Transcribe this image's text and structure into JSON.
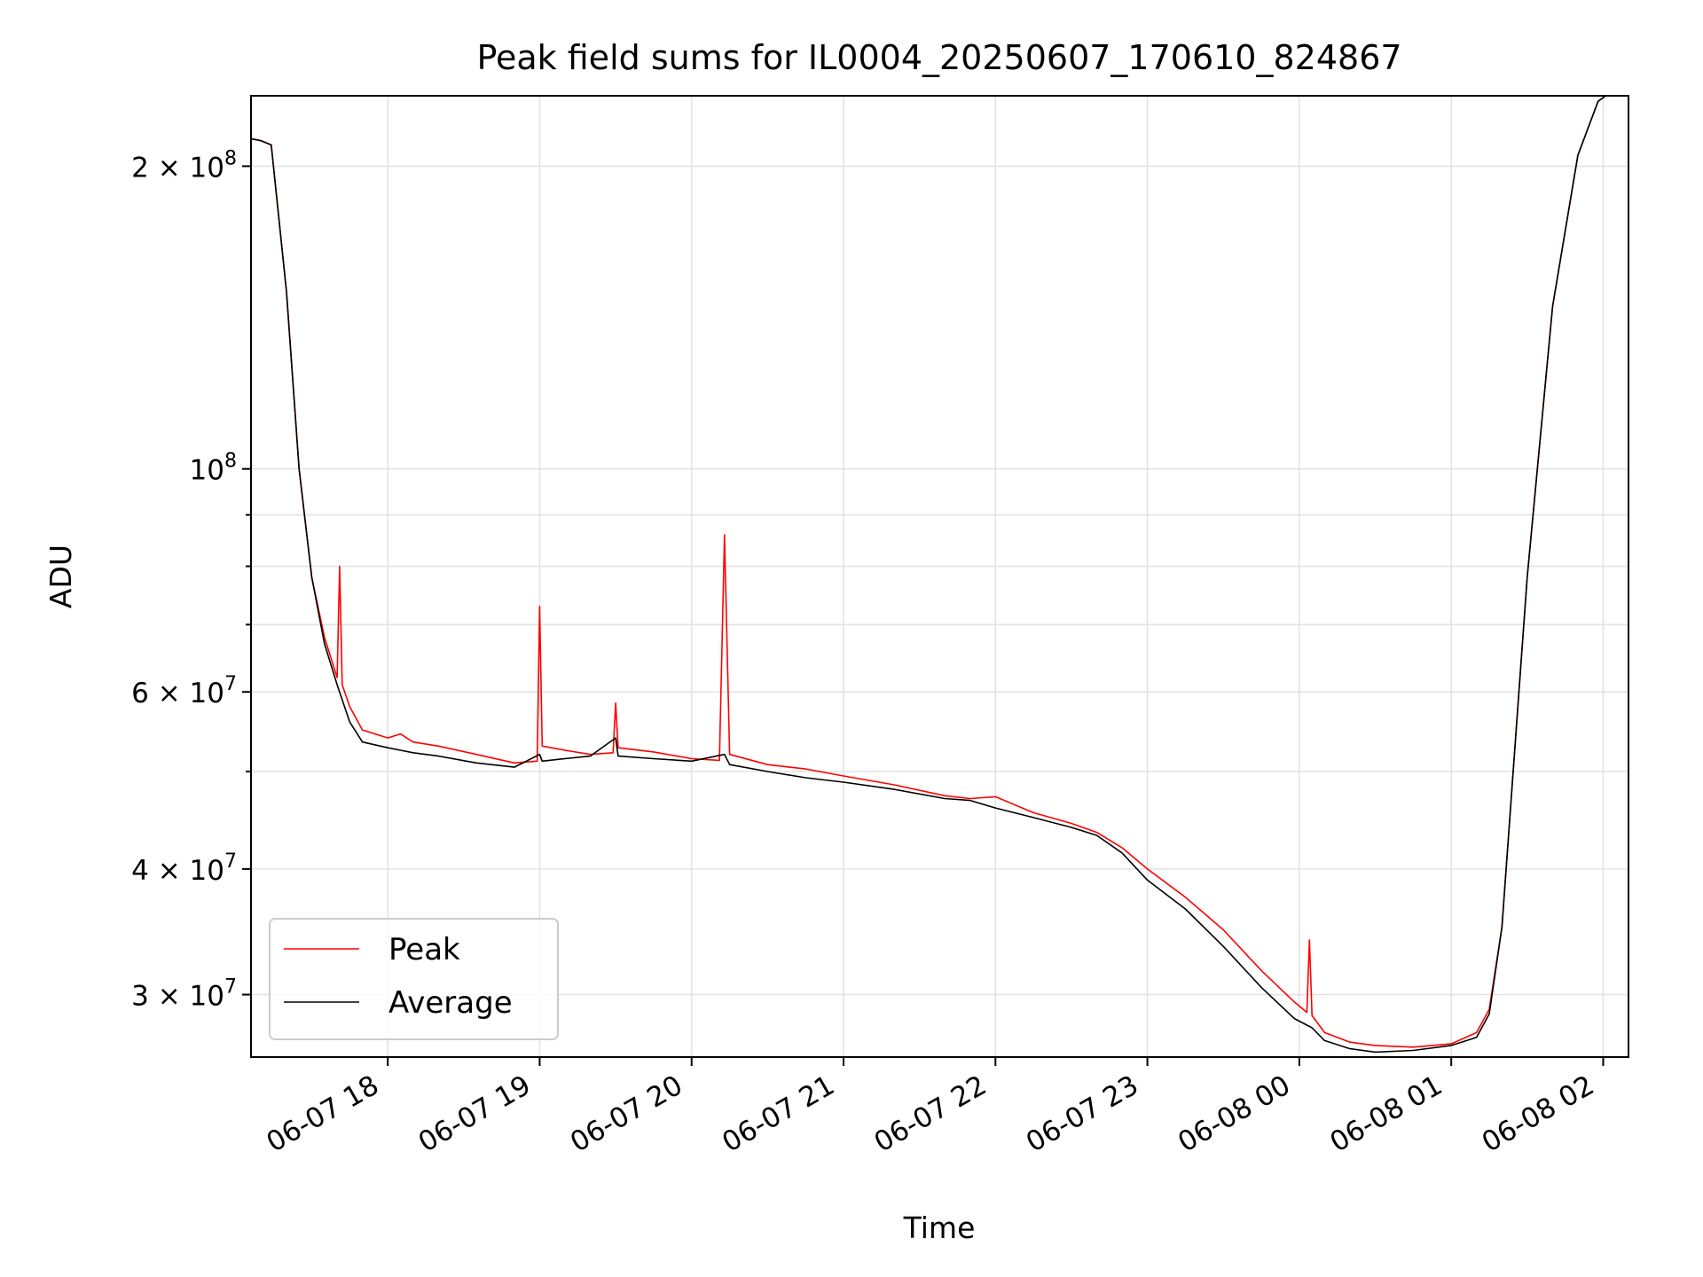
{
  "chart_data": {
    "type": "line",
    "title": "Peak field sums for IL0004_20250607_170610_824867",
    "xlabel": "Time",
    "ylabel": "ADU",
    "yscale": "log",
    "grid": true,
    "legend_position": "lower-left",
    "x_tick_labels": [
      "06-07 18",
      "06-07 19",
      "06-07 20",
      "06-07 21",
      "06-07 22",
      "06-07 23",
      "06-08 00",
      "06-08 01",
      "06-08 02"
    ],
    "x_tick_times": [
      "2025-06-07 18:00",
      "2025-06-07 19:00",
      "2025-06-07 20:00",
      "2025-06-07 21:00",
      "2025-06-07 22:00",
      "2025-06-07 23:00",
      "2025-06-08 00:00",
      "2025-06-08 01:00",
      "2025-06-08 02:00"
    ],
    "xlim": [
      "2025-06-07 17:06",
      "2025-06-08 02:10"
    ],
    "ylim": [
      26000000,
      235000000
    ],
    "y_major_ticks": [
      {
        "value": 30000000,
        "mant": "3",
        "exp": "7"
      },
      {
        "value": 40000000,
        "mant": "4",
        "exp": "7"
      },
      {
        "value": 60000000,
        "mant": "6",
        "exp": "7"
      },
      {
        "value": 100000000,
        "mant": "",
        "exp": "8"
      },
      {
        "value": 200000000,
        "mant": "2",
        "exp": "8"
      }
    ],
    "y_minor_ticks": [
      50000000,
      70000000,
      80000000,
      90000000
    ],
    "series": [
      {
        "name": "Peak",
        "color": "#ff0000",
        "x": [
          "2025-06-07 17:06",
          "2025-06-07 17:10",
          "2025-06-07 17:14",
          "2025-06-07 17:20",
          "2025-06-07 17:25",
          "2025-06-07 17:30",
          "2025-06-07 17:35",
          "2025-06-07 17:40",
          "2025-06-07 17:41",
          "2025-06-07 17:42",
          "2025-06-07 17:45",
          "2025-06-07 17:50",
          "2025-06-07 18:00",
          "2025-06-07 18:05",
          "2025-06-07 18:10",
          "2025-06-07 18:20",
          "2025-06-07 18:35",
          "2025-06-07 18:50",
          "2025-06-07 18:59",
          "2025-06-07 19:00",
          "2025-06-07 19:01",
          "2025-06-07 19:10",
          "2025-06-07 19:20",
          "2025-06-07 19:29",
          "2025-06-07 19:30",
          "2025-06-07 19:31",
          "2025-06-07 19:45",
          "2025-06-07 20:00",
          "2025-06-07 20:11",
          "2025-06-07 20:13",
          "2025-06-07 20:15",
          "2025-06-07 20:30",
          "2025-06-07 20:45",
          "2025-06-07 21:00",
          "2025-06-07 21:20",
          "2025-06-07 21:40",
          "2025-06-07 21:50",
          "2025-06-07 22:00",
          "2025-06-07 22:15",
          "2025-06-07 22:30",
          "2025-06-07 22:40",
          "2025-06-07 22:50",
          "2025-06-07 23:00",
          "2025-06-07 23:15",
          "2025-06-07 23:30",
          "2025-06-07 23:45",
          "2025-06-07 23:58",
          "2025-06-08 00:03",
          "2025-06-08 00:04",
          "2025-06-08 00:05",
          "2025-06-08 00:10",
          "2025-06-08 00:20",
          "2025-06-08 00:30",
          "2025-06-08 00:45",
          "2025-06-08 01:00",
          "2025-06-08 01:10",
          "2025-06-08 01:15",
          "2025-06-08 01:20",
          "2025-06-08 01:30",
          "2025-06-08 01:40",
          "2025-06-08 01:50",
          "2025-06-08 01:58",
          "2025-06-08 02:01",
          "2025-06-08 02:10"
        ],
        "y": [
          213000000,
          212000000,
          210000000,
          150000000,
          100000000,
          78000000,
          68000000,
          62000000,
          80000000,
          61000000,
          58000000,
          55000000,
          54000000,
          54500000,
          53500000,
          53000000,
          52000000,
          51000000,
          51200000,
          73000000,
          53000000,
          52500000,
          52000000,
          52200000,
          58500000,
          52800000,
          52300000,
          51500000,
          51300000,
          86000000,
          52000000,
          50800000,
          50300000,
          49500000,
          48500000,
          47300000,
          47000000,
          47200000,
          45500000,
          44400000,
          43500000,
          42000000,
          40000000,
          37500000,
          34800000,
          31700000,
          29500000,
          28800000,
          34000000,
          28600000,
          27500000,
          26900000,
          26700000,
          26600000,
          26800000,
          27500000,
          29000000,
          35000000,
          78000000,
          145000000,
          205000000,
          232000000,
          235000000,
          235000000
        ]
      },
      {
        "name": "Average",
        "color": "#000000",
        "x": [
          "2025-06-07 17:06",
          "2025-06-07 17:10",
          "2025-06-07 17:14",
          "2025-06-07 17:20",
          "2025-06-07 17:25",
          "2025-06-07 17:30",
          "2025-06-07 17:35",
          "2025-06-07 17:40",
          "2025-06-07 17:45",
          "2025-06-07 17:50",
          "2025-06-07 18:00",
          "2025-06-07 18:05",
          "2025-06-07 18:10",
          "2025-06-07 18:20",
          "2025-06-07 18:35",
          "2025-06-07 18:50",
          "2025-06-07 19:00",
          "2025-06-07 19:01",
          "2025-06-07 19:10",
          "2025-06-07 19:20",
          "2025-06-07 19:30",
          "2025-06-07 19:31",
          "2025-06-07 19:45",
          "2025-06-07 20:00",
          "2025-06-07 20:13",
          "2025-06-07 20:15",
          "2025-06-07 20:30",
          "2025-06-07 20:45",
          "2025-06-07 21:00",
          "2025-06-07 21:20",
          "2025-06-07 21:40",
          "2025-06-07 21:50",
          "2025-06-07 22:00",
          "2025-06-07 22:15",
          "2025-06-07 22:30",
          "2025-06-07 22:40",
          "2025-06-07 22:50",
          "2025-06-07 23:00",
          "2025-06-07 23:15",
          "2025-06-07 23:30",
          "2025-06-07 23:45",
          "2025-06-07 23:58",
          "2025-06-08 00:05",
          "2025-06-08 00:10",
          "2025-06-08 00:20",
          "2025-06-08 00:30",
          "2025-06-08 00:45",
          "2025-06-08 01:00",
          "2025-06-08 01:10",
          "2025-06-08 01:15",
          "2025-06-08 01:20",
          "2025-06-08 01:30",
          "2025-06-08 01:40",
          "2025-06-08 01:50",
          "2025-06-08 01:58",
          "2025-06-08 02:01",
          "2025-06-08 02:10"
        ],
        "y": [
          213000000,
          212000000,
          210000000,
          150000000,
          100000000,
          78000000,
          67000000,
          61000000,
          56000000,
          53500000,
          52800000,
          52500000,
          52200000,
          51800000,
          51000000,
          50500000,
          52000000,
          51200000,
          51500000,
          51800000,
          54000000,
          51800000,
          51500000,
          51200000,
          52000000,
          50800000,
          50000000,
          49300000,
          48800000,
          48000000,
          47000000,
          46800000,
          46000000,
          45000000,
          44000000,
          43200000,
          41500000,
          39000000,
          36500000,
          33500000,
          30500000,
          28400000,
          27800000,
          27000000,
          26500000,
          26300000,
          26400000,
          26700000,
          27200000,
          28700000,
          35000000,
          78000000,
          145000000,
          205000000,
          232000000,
          235000000,
          235000000
        ]
      }
    ]
  }
}
